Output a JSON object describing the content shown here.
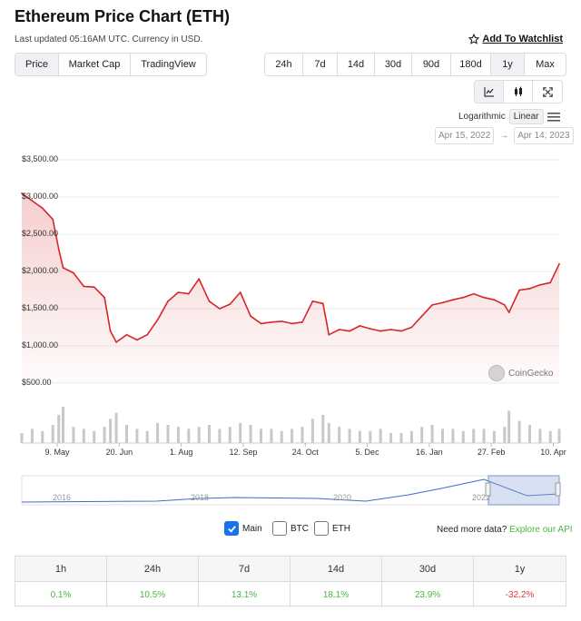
{
  "header": {
    "title": "Ethereum Price Chart (ETH)",
    "updated": "Last updated 05:16AM UTC. Currency in USD.",
    "watchlist": "Add To Watchlist"
  },
  "tabs": [
    "Price",
    "Market Cap",
    "TradingView"
  ],
  "active_tab": "Price",
  "ranges": [
    "24h",
    "7d",
    "14d",
    "30d",
    "90d",
    "180d",
    "1y",
    "Max"
  ],
  "active_range": "1y",
  "tools": {
    "line": "line-chart-icon",
    "candle": "candlestick-icon",
    "fullscreen": "fullscreen-icon"
  },
  "scale": {
    "log": "Logarithmic",
    "linear": "Linear"
  },
  "date_range": {
    "from": "Apr 15, 2022",
    "to": "Apr 14, 2023"
  },
  "credit": "CoinGecko",
  "legend": {
    "main": "Main",
    "btc": "BTC",
    "eth": "ETH",
    "more": "Need more data?",
    "api": "Explore our API"
  },
  "performance": [
    {
      "period": "1h",
      "value": "0.1%",
      "color": "#4bb543"
    },
    {
      "period": "24h",
      "value": "10.5%",
      "color": "#4bb543"
    },
    {
      "period": "7d",
      "value": "13.1%",
      "color": "#4bb543"
    },
    {
      "period": "14d",
      "value": "18.1%",
      "color": "#4bb543"
    },
    {
      "period": "30d",
      "value": "23.9%",
      "color": "#4bb543"
    },
    {
      "period": "1y",
      "value": "-32.2%",
      "color": "#e0363c"
    }
  ],
  "chart_data": {
    "type": "line",
    "line_color": "#d62728",
    "yticks": [
      "$3,500.00",
      "$3,000.00",
      "$2,500.00",
      "$2,000.00",
      "$1,500.00",
      "$1,000.00",
      "$500.00"
    ],
    "ylim": [
      500,
      3500
    ],
    "xticks": [
      "9. May",
      "20. Jun",
      "1. Aug",
      "12. Sep",
      "24. Oct",
      "5. Dec",
      "16. Jan",
      "27. Feb",
      "10. Apr"
    ],
    "x": [
      "2022-04-15",
      "2022-04-22",
      "2022-04-29",
      "2022-05-06",
      "2022-05-10",
      "2022-05-13",
      "2022-05-20",
      "2022-05-27",
      "2022-06-03",
      "2022-06-10",
      "2022-06-14",
      "2022-06-18",
      "2022-06-25",
      "2022-07-02",
      "2022-07-09",
      "2022-07-16",
      "2022-07-23",
      "2022-07-30",
      "2022-08-06",
      "2022-08-13",
      "2022-08-20",
      "2022-08-27",
      "2022-09-03",
      "2022-09-10",
      "2022-09-17",
      "2022-09-24",
      "2022-10-01",
      "2022-10-08",
      "2022-10-15",
      "2022-10-22",
      "2022-10-29",
      "2022-11-05",
      "2022-11-09",
      "2022-11-16",
      "2022-11-23",
      "2022-11-30",
      "2022-12-07",
      "2022-12-14",
      "2022-12-21",
      "2022-12-28",
      "2023-01-04",
      "2023-01-11",
      "2023-01-18",
      "2023-01-25",
      "2023-02-01",
      "2023-02-08",
      "2023-02-15",
      "2023-02-22",
      "2023-03-01",
      "2023-03-08",
      "2023-03-11",
      "2023-03-18",
      "2023-03-25",
      "2023-04-01",
      "2023-04-08",
      "2023-04-14"
    ],
    "values": [
      3050,
      2950,
      2850,
      2700,
      2300,
      2050,
      1980,
      1800,
      1790,
      1650,
      1200,
      1050,
      1150,
      1080,
      1150,
      1350,
      1600,
      1720,
      1700,
      1900,
      1600,
      1500,
      1560,
      1720,
      1400,
      1300,
      1320,
      1330,
      1300,
      1320,
      1600,
      1570,
      1150,
      1220,
      1200,
      1270,
      1230,
      1200,
      1220,
      1200,
      1250,
      1400,
      1550,
      1580,
      1620,
      1650,
      1700,
      1650,
      1620,
      1550,
      1450,
      1750,
      1770,
      1820,
      1850,
      2100
    ],
    "volume": [
      5,
      7,
      6,
      9,
      14,
      18,
      8,
      7,
      6,
      8,
      12,
      15,
      9,
      7,
      6,
      10,
      9,
      8,
      7,
      8,
      9,
      7,
      8,
      10,
      9,
      7,
      7,
      6,
      7,
      8,
      12,
      14,
      10,
      8,
      7,
      6,
      6,
      7,
      5,
      5,
      6,
      8,
      9,
      7,
      7,
      6,
      7,
      7,
      6,
      8,
      16,
      11,
      9,
      7,
      6,
      7
    ],
    "nav_labels": [
      "2016",
      "2018",
      "2020",
      "2022"
    ]
  }
}
